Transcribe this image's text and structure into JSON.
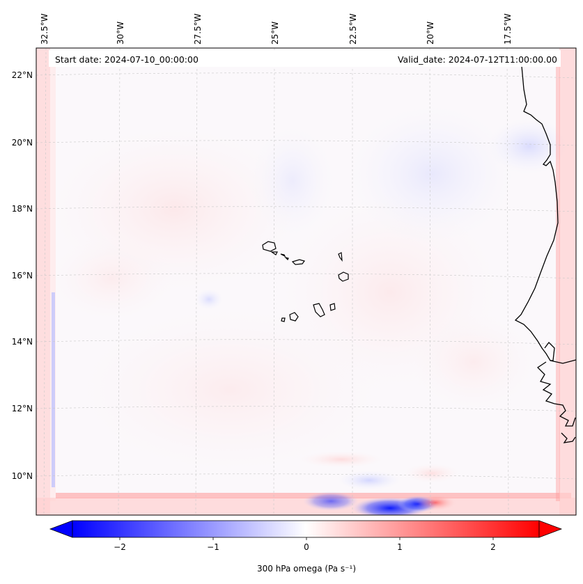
{
  "header": {
    "start_date": "Start date: 2024-07-10_00:00:00",
    "valid_date": "Valid_date: 2024-07-12T11:00:00.00"
  },
  "map": {
    "lon_labels": [
      "32.5°W",
      "30°W",
      "27.5°W",
      "25°W",
      "22.5°W",
      "20°W",
      "17.5°W"
    ],
    "lat_labels": [
      "22°N",
      "20°N",
      "18°N",
      "16°N",
      "14°N",
      "12°N",
      "10°N"
    ],
    "colors": {
      "negative": "#0000ff",
      "neutral": "#ffffff",
      "positive": "#ff0000",
      "coast": "#000000"
    }
  },
  "colorbar": {
    "ticks": [
      "−2",
      "−1",
      "0",
      "1",
      "2"
    ],
    "label": "300 hPa omega (Pa s⁻¹)"
  }
}
